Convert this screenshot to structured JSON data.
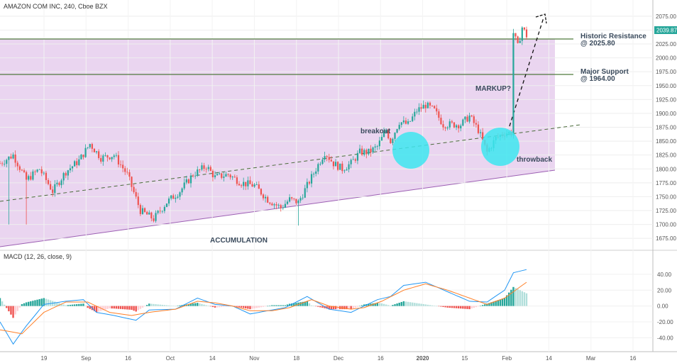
{
  "header": {
    "title": "AMAZON COM INC, 240, Cboe BZX"
  },
  "price_marker": "2039.87",
  "macd_header": "MACD (12, 26, close, 9)",
  "annotations": {
    "historic_resistance": [
      "Historic Resistance",
      "@ 2025.80"
    ],
    "major_support": [
      "Major Support",
      "@ 1964.00"
    ],
    "markup": "MARKUP?",
    "breakout": "breakout",
    "throwback": "throwback",
    "accumulation": "ACCUMULATION"
  },
  "colors": {
    "up": "#26a69a",
    "down": "#ef5350",
    "zone": "#ead5f0",
    "zone_edge": "#9c5fb3",
    "level_line": "#4f7a3c",
    "macd_line": "#2196f3",
    "signal_line": "#ff7f27",
    "circle": "#3de6f0"
  },
  "chart_data": [
    {
      "type": "candlestick",
      "title": "AMAZON COM INC, 240, Cboe BZX",
      "ylim": [
        1665,
        2085
      ],
      "y_ticks": [
        "2075.00",
        "2050.00",
        "2025.00",
        "2000.00",
        "1975.00",
        "1950.00",
        "1925.00",
        "1900.00",
        "1875.00",
        "1850.00",
        "1825.00",
        "1800.00",
        "1775.00",
        "1750.00",
        "1725.00",
        "1700.00",
        "1675.00"
      ],
      "x_ticks": [
        "19",
        "Sep",
        "16",
        "Oct",
        "14",
        "Nov",
        "18",
        "Dec",
        "16",
        "2020",
        "15",
        "Feb",
        "14",
        "Mar",
        "16"
      ],
      "levels": [
        {
          "name": "Historic Resistance",
          "value": 2025.8
        },
        {
          "name": "Major Support",
          "value": 1964.0
        }
      ],
      "path_points": [
        [
          0,
          1810
        ],
        [
          6,
          1825
        ],
        [
          12,
          1780
        ],
        [
          18,
          1800
        ],
        [
          24,
          1760
        ],
        [
          30,
          1795
        ],
        [
          36,
          1815
        ],
        [
          41,
          1845
        ],
        [
          46,
          1820
        ],
        [
          52,
          1825
        ],
        [
          58,
          1790
        ],
        [
          64,
          1725
        ],
        [
          70,
          1710
        ],
        [
          76,
          1740
        ],
        [
          82,
          1760
        ],
        [
          88,
          1790
        ],
        [
          94,
          1805
        ],
        [
          98,
          1785
        ],
        [
          104,
          1790
        ],
        [
          110,
          1775
        ],
        [
          116,
          1770
        ],
        [
          122,
          1745
        ],
        [
          128,
          1730
        ],
        [
          132,
          1745
        ],
        [
          136,
          1740
        ],
        [
          140,
          1770
        ],
        [
          144,
          1800
        ],
        [
          148,
          1830
        ],
        [
          152,
          1810
        ],
        [
          156,
          1800
        ],
        [
          160,
          1810
        ],
        [
          164,
          1830
        ],
        [
          168,
          1830
        ],
        [
          172,
          1840
        ],
        [
          176,
          1870
        ],
        [
          178,
          1850
        ],
        [
          182,
          1885
        ],
        [
          186,
          1880
        ],
        [
          190,
          1905
        ],
        [
          194,
          1915
        ],
        [
          198,
          1905
        ],
        [
          202,
          1880
        ],
        [
          206,
          1880
        ],
        [
          210,
          1880
        ],
        [
          214,
          1895
        ],
        [
          218,
          1870
        ],
        [
          222,
          1830
        ],
        [
          226,
          1855
        ],
        [
          230,
          1865
        ],
        [
          233,
          1865
        ],
        [
          234,
          2045
        ],
        [
          236,
          2020
        ],
        [
          238,
          2055
        ],
        [
          240,
          2040
        ]
      ],
      "close": 2039.87
    },
    {
      "type": "macd",
      "title": "MACD (12, 26, close, 9)",
      "ylim": [
        -54,
        56
      ],
      "y_ticks": [
        "40.00",
        "20.00",
        "0.00",
        "-20.00",
        "-40.00"
      ],
      "macd_points": [
        [
          0,
          -20
        ],
        [
          6,
          -48
        ],
        [
          12,
          -25
        ],
        [
          20,
          2
        ],
        [
          30,
          6
        ],
        [
          38,
          8
        ],
        [
          44,
          -8
        ],
        [
          52,
          -12
        ],
        [
          62,
          -18
        ],
        [
          68,
          -5
        ],
        [
          80,
          -4
        ],
        [
          90,
          10
        ],
        [
          98,
          2
        ],
        [
          106,
          0
        ],
        [
          114,
          -10
        ],
        [
          122,
          -6
        ],
        [
          130,
          -2
        ],
        [
          140,
          12
        ],
        [
          150,
          -4
        ],
        [
          160,
          -8
        ],
        [
          166,
          0
        ],
        [
          172,
          8
        ],
        [
          178,
          12
        ],
        [
          184,
          26
        ],
        [
          194,
          30
        ],
        [
          204,
          18
        ],
        [
          214,
          6
        ],
        [
          222,
          5
        ],
        [
          230,
          20
        ],
        [
          234,
          42
        ],
        [
          240,
          46
        ]
      ],
      "signal_points": [
        [
          0,
          -30
        ],
        [
          10,
          -35
        ],
        [
          20,
          -8
        ],
        [
          30,
          5
        ],
        [
          40,
          5
        ],
        [
          50,
          -8
        ],
        [
          60,
          -12
        ],
        [
          68,
          -8
        ],
        [
          80,
          -4
        ],
        [
          90,
          6
        ],
        [
          98,
          4
        ],
        [
          106,
          0
        ],
        [
          114,
          -6
        ],
        [
          124,
          -6
        ],
        [
          132,
          -2
        ],
        [
          142,
          8
        ],
        [
          150,
          0
        ],
        [
          160,
          -4
        ],
        [
          166,
          -2
        ],
        [
          174,
          6
        ],
        [
          184,
          20
        ],
        [
          194,
          28
        ],
        [
          204,
          20
        ],
        [
          214,
          10
        ],
        [
          222,
          2
        ],
        [
          230,
          10
        ],
        [
          236,
          22
        ],
        [
          240,
          30
        ]
      ]
    }
  ]
}
